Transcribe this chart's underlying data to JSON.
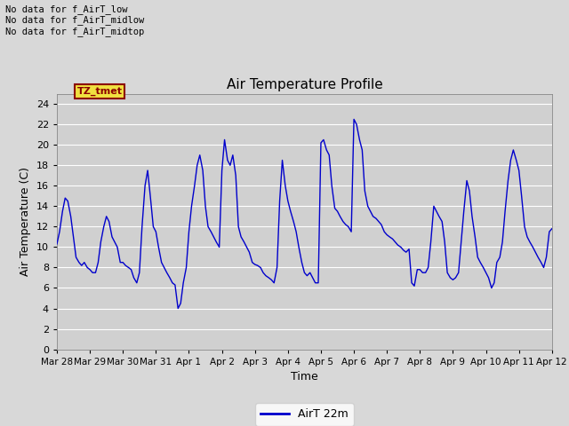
{
  "title": "Air Temperature Profile",
  "xlabel": "Time",
  "ylabel": "Air Temperature (C)",
  "legend_label": "AirT 22m",
  "annotations": [
    "No data for f_AirT_low",
    "No data for f_AirT_midlow",
    "No data for f_AirT_midtop"
  ],
  "tz_label": "TZ_tmet",
  "ylim": [
    0,
    25
  ],
  "yticks": [
    0,
    2,
    4,
    6,
    8,
    10,
    12,
    14,
    16,
    18,
    20,
    22,
    24
  ],
  "line_color": "#0000cc",
  "background_color": "#d8d8d8",
  "plot_bg_color": "#d0d0d0",
  "grid_color": "#ffffff",
  "x_tick_labels": [
    "Mar 28",
    "Mar 29",
    "Mar 30",
    "Mar 31",
    "Apr 1",
    "Apr 2",
    "Apr 3",
    "Apr 4",
    "Apr 5",
    "Apr 6",
    "Apr 7",
    "Apr 8",
    "Apr 9",
    "Apr 10",
    "Apr 11",
    "Apr 12"
  ],
  "x_tick_positions": [
    0,
    1,
    2,
    3,
    4,
    5,
    6,
    7,
    8,
    9,
    10,
    11,
    12,
    13,
    14,
    15
  ],
  "time_data": [
    0.0,
    0.08,
    0.17,
    0.25,
    0.33,
    0.42,
    0.5,
    0.58,
    0.67,
    0.75,
    0.83,
    0.92,
    1.0,
    1.08,
    1.17,
    1.25,
    1.33,
    1.42,
    1.5,
    1.58,
    1.67,
    1.75,
    1.83,
    1.92,
    2.0,
    2.08,
    2.17,
    2.25,
    2.33,
    2.42,
    2.5,
    2.58,
    2.67,
    2.75,
    2.83,
    2.92,
    3.0,
    3.08,
    3.17,
    3.25,
    3.33,
    3.42,
    3.5,
    3.58,
    3.67,
    3.75,
    3.83,
    3.92,
    4.0,
    4.08,
    4.17,
    4.25,
    4.33,
    4.42,
    4.5,
    4.58,
    4.67,
    4.75,
    4.83,
    4.92,
    5.0,
    5.08,
    5.17,
    5.25,
    5.33,
    5.42,
    5.5,
    5.58,
    5.67,
    5.75,
    5.83,
    5.92,
    6.0,
    6.08,
    6.17,
    6.25,
    6.33,
    6.42,
    6.5,
    6.58,
    6.67,
    6.75,
    6.83,
    6.92,
    7.0,
    7.08,
    7.17,
    7.25,
    7.33,
    7.42,
    7.5,
    7.58,
    7.67,
    7.75,
    7.83,
    7.92,
    8.0,
    8.08,
    8.17,
    8.25,
    8.33,
    8.42,
    8.5,
    8.58,
    8.67,
    8.75,
    8.83,
    8.92,
    9.0,
    9.08,
    9.17,
    9.25,
    9.33,
    9.42,
    9.5,
    9.58,
    9.67,
    9.75,
    9.83,
    9.92,
    10.0,
    10.08,
    10.17,
    10.25,
    10.33,
    10.42,
    10.5,
    10.58,
    10.67,
    10.75,
    10.83,
    10.92,
    11.0,
    11.08,
    11.17,
    11.25,
    11.33,
    11.42,
    11.5,
    11.58,
    11.67,
    11.75,
    11.83,
    11.92,
    12.0,
    12.08,
    12.17,
    12.25,
    12.33,
    12.42,
    12.5,
    12.58,
    12.67,
    12.75,
    12.83,
    12.92,
    13.0,
    13.08,
    13.17,
    13.25,
    13.33,
    13.42,
    13.5,
    13.58,
    13.67,
    13.75,
    13.83,
    13.92,
    14.0,
    14.08,
    14.17,
    14.25,
    14.33,
    14.42,
    14.5,
    14.58,
    14.67,
    14.75,
    14.83,
    14.92,
    15.0
  ],
  "temp_data": [
    10.3,
    11.5,
    13.5,
    14.8,
    14.5,
    13.0,
    11.0,
    9.0,
    8.5,
    8.2,
    8.5,
    8.0,
    7.8,
    7.5,
    7.5,
    8.5,
    10.5,
    12.0,
    13.0,
    12.5,
    11.0,
    10.5,
    10.0,
    8.5,
    8.5,
    8.2,
    8.0,
    7.8,
    7.0,
    6.5,
    7.5,
    12.0,
    16.0,
    17.5,
    15.0,
    12.0,
    11.5,
    10.0,
    8.5,
    8.0,
    7.5,
    7.0,
    6.5,
    6.3,
    4.0,
    4.5,
    6.5,
    8.0,
    11.5,
    14.0,
    16.0,
    18.0,
    19.0,
    17.5,
    14.0,
    12.0,
    11.5,
    11.0,
    10.5,
    10.0,
    17.5,
    20.5,
    18.5,
    18.0,
    19.0,
    17.0,
    12.0,
    11.0,
    10.5,
    10.0,
    9.5,
    8.5,
    8.3,
    8.2,
    8.0,
    7.5,
    7.2,
    7.0,
    6.8,
    6.5,
    8.0,
    14.5,
    18.5,
    16.0,
    14.5,
    13.5,
    12.5,
    11.5,
    10.0,
    8.5,
    7.5,
    7.2,
    7.5,
    7.0,
    6.5,
    6.5,
    20.2,
    20.5,
    19.5,
    19.0,
    16.0,
    13.8,
    13.5,
    13.0,
    12.5,
    12.2,
    12.0,
    11.5,
    22.5,
    22.0,
    20.5,
    19.5,
    15.5,
    14.0,
    13.5,
    13.0,
    12.8,
    12.5,
    12.2,
    11.5,
    11.2,
    11.0,
    10.8,
    10.5,
    10.2,
    10.0,
    9.7,
    9.5,
    9.8,
    6.5,
    6.2,
    7.8,
    7.8,
    7.5,
    7.5,
    8.0,
    10.5,
    14.0,
    13.5,
    13.0,
    12.5,
    10.5,
    7.5,
    7.0,
    6.8,
    7.0,
    7.5,
    10.5,
    13.5,
    16.5,
    15.5,
    13.0,
    11.0,
    9.0,
    8.5,
    8.0,
    7.5,
    7.0,
    6.0,
    6.5,
    8.5,
    9.0,
    10.5,
    13.5,
    16.5,
    18.5,
    19.5,
    18.5,
    17.5,
    15.0,
    12.0,
    11.0,
    10.5,
    10.0,
    9.5,
    9.0,
    8.5,
    8.0,
    9.0,
    11.5,
    11.8
  ]
}
